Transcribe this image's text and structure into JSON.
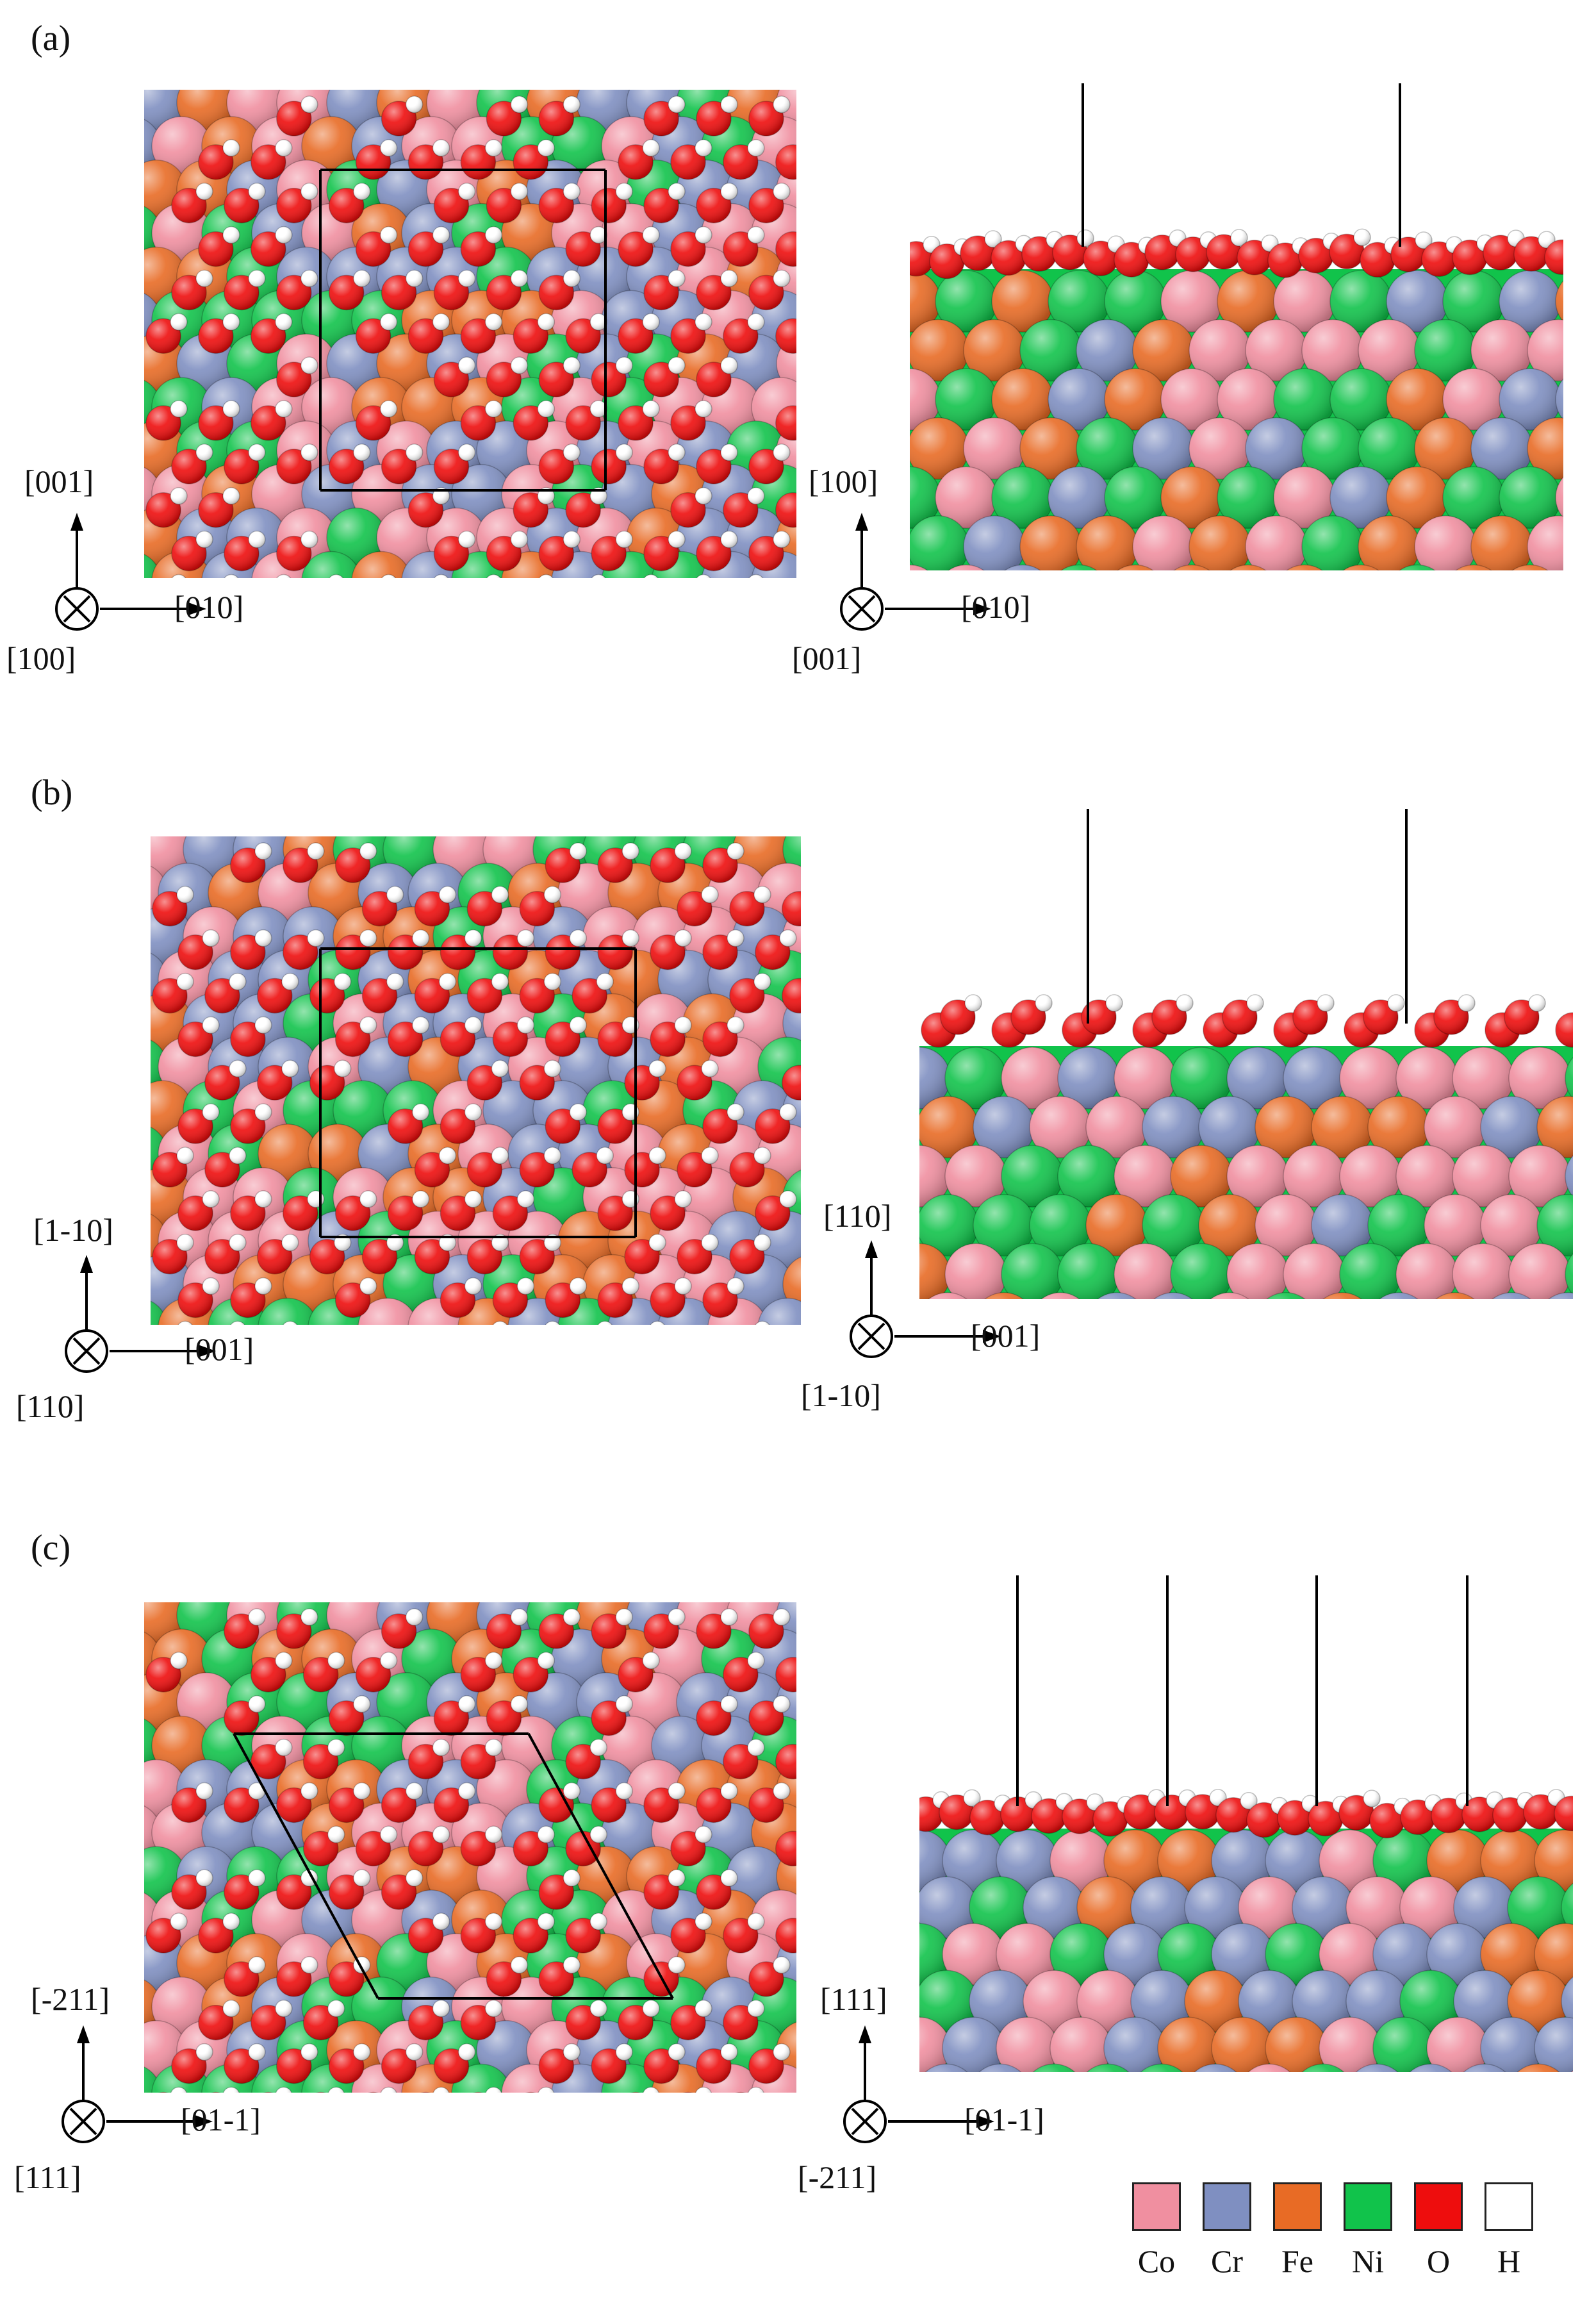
{
  "colors": {
    "Co": "#f08fa0",
    "Cr": "#7f8fc1",
    "Fe": "#e86b25",
    "Ni": "#11c34b",
    "O": "#ee0d0d",
    "H": "#ffffff"
  },
  "panels": [
    {
      "label": "(a)",
      "top_view": {
        "up": "[001]",
        "right": "[010]",
        "into": "[100]"
      },
      "side_view": {
        "up": "[100]",
        "right": "[010]",
        "into": "[001]"
      }
    },
    {
      "label": "(b)",
      "top_view": {
        "up": "[1-10]",
        "right": "[001]",
        "into": "[110]"
      },
      "side_view": {
        "up": "[110]",
        "right": "[001]",
        "into": "[1-10]"
      }
    },
    {
      "label": "(c)",
      "top_view": {
        "up": "[-211]",
        "right": "[01-1]",
        "into": "[111]"
      },
      "side_view": {
        "up": "[111]",
        "right": "[01-1]",
        "into": "[-211]"
      }
    }
  ],
  "legend": [
    {
      "element": "Co",
      "label": "Co"
    },
    {
      "element": "Cr",
      "label": "Cr"
    },
    {
      "element": "Fe",
      "label": "Fe"
    },
    {
      "element": "Ni",
      "label": "Ni"
    },
    {
      "element": "O",
      "label": "O"
    },
    {
      "element": "H",
      "label": "H"
    }
  ]
}
